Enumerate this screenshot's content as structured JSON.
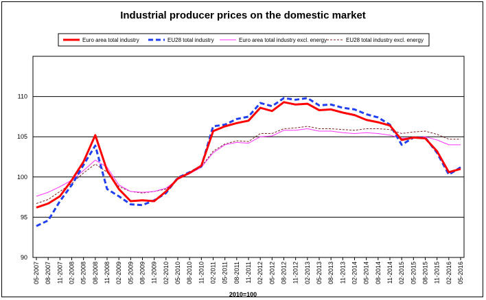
{
  "chart_data": {
    "type": "line",
    "title": "Industrial producer prices on the domestic market",
    "xlabel": "2010=100",
    "ylabel": "",
    "ylim": [
      90,
      115
    ],
    "yticks": [
      90,
      95,
      100,
      105,
      110
    ],
    "grid": "horizontal",
    "legend_position": "top",
    "x_tick_labels": [
      "05-2007",
      "08-2007",
      "11-2007",
      "02-2008",
      "05-2008",
      "08-2008",
      "11-2008",
      "02-2009",
      "05-2009",
      "08-2009",
      "11-2009",
      "02-2010",
      "05-2010",
      "08-2010",
      "11-2010",
      "02-2011",
      "05-2011",
      "08-2011",
      "11-2011",
      "02-2012",
      "05-2012",
      "08-2012",
      "11-2012",
      "02-2013",
      "05-2013",
      "08-2013",
      "11-2013",
      "02-2014",
      "05-2014",
      "08-2014",
      "11-2014",
      "02-2015",
      "05-2015",
      "08-2015",
      "11-2015",
      "02-2016",
      "05-2016"
    ],
    "series": [
      {
        "name": "Euro area total industry",
        "color": "#ff0000",
        "style": "solid-thick",
        "values": [
          96.2,
          96.7,
          97.6,
          99.6,
          101.9,
          105.2,
          100.8,
          98.5,
          97.0,
          97.1,
          97.0,
          98.2,
          99.8,
          100.5,
          101.4,
          105.7,
          106.3,
          106.7,
          107.0,
          108.6,
          108.2,
          109.3,
          109.0,
          109.1,
          108.3,
          108.4,
          108.0,
          107.7,
          107.1,
          106.8,
          106.4,
          104.6,
          104.9,
          104.8,
          103.2,
          100.6,
          101.0
        ]
      },
      {
        "name": "EU28 total industry",
        "color": "#1f3ff0",
        "style": "dashed-thick",
        "values": [
          93.9,
          94.6,
          97.0,
          99.0,
          101.5,
          103.9,
          98.5,
          97.6,
          96.6,
          96.5,
          97.1,
          98.0,
          99.9,
          100.6,
          101.3,
          106.3,
          106.5,
          107.2,
          107.5,
          109.2,
          108.8,
          109.8,
          109.6,
          109.8,
          108.9,
          109.0,
          108.6,
          108.4,
          107.8,
          107.4,
          106.5,
          104.0,
          104.9,
          104.9,
          103.0,
          100.3,
          101.2
        ]
      },
      {
        "name": "Euro area total industry excl. energy",
        "color": "#ff33ff",
        "style": "solid-thin",
        "values": [
          97.6,
          98.1,
          98.8,
          99.6,
          100.8,
          102.1,
          101.2,
          99.0,
          98.2,
          98.1,
          98.2,
          98.6,
          99.7,
          100.4,
          101.2,
          103.0,
          104.0,
          104.3,
          104.2,
          105.0,
          105.1,
          105.8,
          105.8,
          106.0,
          105.7,
          105.7,
          105.5,
          105.4,
          105.5,
          105.4,
          105.2,
          104.8,
          104.9,
          105.0,
          104.6,
          104.0,
          104.0
        ]
      },
      {
        "name": "EU28 total industry excl. energy",
        "color": "#7b1f1f",
        "style": "dashed-thin",
        "values": [
          96.7,
          97.2,
          98.2,
          99.2,
          100.5,
          101.6,
          100.6,
          98.8,
          98.2,
          98.0,
          98.2,
          98.5,
          99.7,
          100.4,
          101.3,
          103.2,
          104.1,
          104.5,
          104.4,
          105.4,
          105.4,
          106.0,
          106.1,
          106.3,
          106.0,
          106.0,
          105.9,
          105.8,
          106.0,
          106.0,
          105.9,
          105.4,
          105.6,
          105.7,
          105.3,
          104.7,
          104.7
        ]
      }
    ]
  }
}
